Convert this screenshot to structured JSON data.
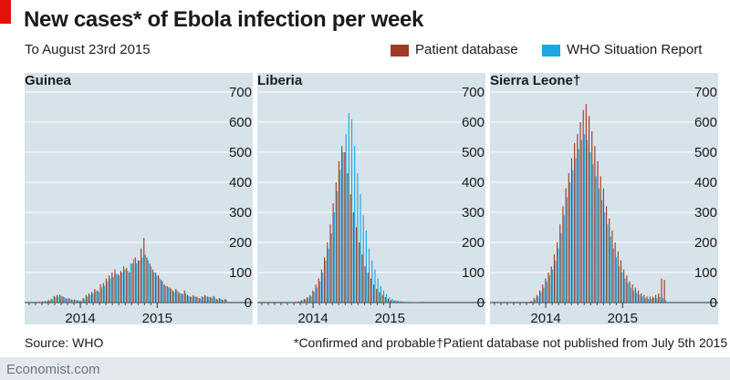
{
  "header": {
    "title": "New cases* of Ebola infection per week",
    "subtitle": "To August 23rd 2015"
  },
  "legend": {
    "patient": "Patient database",
    "who": "WHO Situation Report"
  },
  "colors": {
    "patient": "#9e3b22",
    "who": "#1ba8e0",
    "panel_bg": "#d6e3eb",
    "accent": "#e3120b"
  },
  "footer": {
    "source": "Source: WHO",
    "note1": "*Confirmed and probable",
    "note2": "†Patient database not published from July 5th 2015",
    "brand": "Economist.com"
  },
  "chart_data": [
    {
      "type": "bar",
      "title": "Guinea",
      "ylim": [
        0,
        700
      ],
      "yticks": [
        "0",
        "100",
        "200",
        "300",
        "400",
        "500",
        "600",
        "700"
      ],
      "xticks": [
        "2014",
        "2015"
      ],
      "series": [
        {
          "name": "Patient database",
          "values": [
            0,
            0,
            2,
            3,
            4,
            5,
            8,
            12,
            22,
            25,
            26,
            20,
            15,
            14,
            10,
            10,
            8,
            6,
            15,
            25,
            30,
            35,
            45,
            40,
            60,
            65,
            80,
            90,
            100,
            110,
            95,
            105,
            120,
            115,
            100,
            130,
            150,
            140,
            180,
            215,
            150,
            130,
            110,
            100,
            90,
            75,
            60,
            55,
            50,
            40,
            45,
            35,
            30,
            40,
            25,
            20,
            25,
            20,
            15,
            20,
            25,
            20,
            18,
            22,
            12,
            15,
            10,
            12
          ]
        },
        {
          "name": "WHO Situation Report",
          "values": [
            0,
            0,
            1,
            2,
            3,
            4,
            6,
            10,
            18,
            20,
            22,
            18,
            12,
            12,
            8,
            8,
            6,
            5,
            10,
            20,
            25,
            30,
            38,
            35,
            50,
            55,
            70,
            80,
            85,
            95,
            90,
            100,
            110,
            105,
            130,
            145,
            130,
            140,
            150,
            160,
            140,
            120,
            100,
            90,
            80,
            70,
            55,
            50,
            45,
            35,
            40,
            30,
            28,
            30,
            22,
            18,
            20,
            18,
            13,
            18,
            20,
            18,
            15,
            18,
            10,
            12,
            8,
            10
          ]
        }
      ]
    },
    {
      "type": "bar",
      "title": "Liberia",
      "ylim": [
        0,
        700
      ],
      "yticks": [
        "0",
        "100",
        "200",
        "300",
        "400",
        "500",
        "600",
        "700"
      ],
      "xticks": [
        "2014",
        "2015"
      ],
      "series": [
        {
          "name": "Patient database",
          "values": [
            0,
            0,
            0,
            0,
            0,
            0,
            0,
            0,
            0,
            0,
            2,
            3,
            5,
            8,
            12,
            18,
            25,
            40,
            60,
            80,
            110,
            150,
            200,
            260,
            330,
            400,
            470,
            520,
            500,
            430,
            360,
            300,
            250,
            200,
            160,
            120,
            100,
            80,
            60,
            45,
            35,
            25,
            18,
            12,
            8,
            6,
            5,
            4,
            3,
            2,
            2,
            1,
            1,
            1,
            1,
            0,
            0,
            0,
            0,
            0,
            0,
            0,
            0,
            0,
            0,
            0,
            0,
            0
          ]
        },
        {
          "name": "WHO Situation Report",
          "values": [
            0,
            0,
            0,
            0,
            0,
            0,
            0,
            0,
            0,
            0,
            1,
            2,
            3,
            6,
            10,
            15,
            20,
            35,
            50,
            70,
            100,
            140,
            180,
            230,
            300,
            370,
            440,
            500,
            560,
            630,
            610,
            520,
            430,
            360,
            290,
            240,
            180,
            140,
            110,
            80,
            55,
            40,
            28,
            18,
            12,
            8,
            6,
            4,
            3,
            2,
            1,
            1,
            1,
            1,
            0,
            0,
            0,
            0,
            0,
            0,
            0,
            0,
            0,
            0,
            0,
            0,
            0,
            0
          ]
        }
      ]
    },
    {
      "type": "bar",
      "title": "Sierra Leone†",
      "ylim": [
        0,
        700
      ],
      "yticks": [
        "0",
        "100",
        "200",
        "300",
        "400",
        "500",
        "600",
        "700"
      ],
      "xticks": [
        "2014",
        "2015"
      ],
      "series": [
        {
          "name": "Patient database",
          "values": [
            0,
            0,
            0,
            0,
            0,
            0,
            0,
            0,
            0,
            0,
            0,
            0,
            5,
            15,
            25,
            40,
            60,
            80,
            100,
            120,
            160,
            200,
            260,
            320,
            380,
            430,
            480,
            530,
            560,
            600,
            640,
            660,
            620,
            570,
            520,
            470,
            420,
            380,
            320,
            280,
            240,
            200,
            170,
            140,
            110,
            90,
            70,
            60,
            50,
            40,
            30,
            25,
            20,
            20,
            20,
            25,
            30,
            80,
            75,
            0,
            0,
            0,
            0,
            0,
            0,
            0,
            0,
            0
          ]
        },
        {
          "name": "WHO Situation Report",
          "values": [
            0,
            0,
            0,
            0,
            0,
            0,
            0,
            0,
            0,
            0,
            0,
            0,
            3,
            10,
            20,
            35,
            50,
            70,
            90,
            110,
            140,
            180,
            230,
            290,
            350,
            400,
            440,
            480,
            510,
            540,
            560,
            540,
            500,
            460,
            420,
            380,
            340,
            300,
            260,
            220,
            180,
            150,
            120,
            100,
            80,
            65,
            50,
            40,
            32,
            26,
            20,
            15,
            12,
            12,
            15,
            15,
            18,
            15,
            8,
            2,
            0,
            0,
            0,
            0,
            0,
            0,
            0,
            0
          ]
        }
      ]
    }
  ]
}
